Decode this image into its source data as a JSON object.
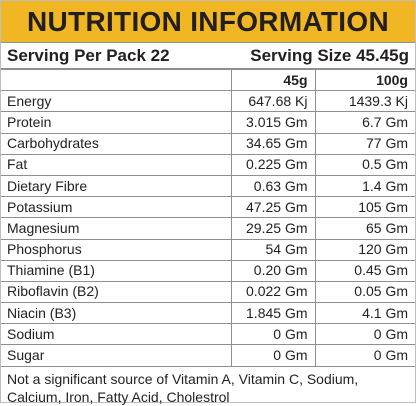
{
  "label": {
    "title": "NUTRITION INFORMATION",
    "header_band_color": "#f0b624",
    "serving_per_pack": "Serving Per Pack 22",
    "serving_size": "Serving Size 45.45g",
    "columns": {
      "col_45g": "45g",
      "col_100g": "100g"
    },
    "rows": [
      {
        "name": "Energy",
        "per_45g": "647.68 Kj",
        "per_100g": "1439.3 Kj"
      },
      {
        "name": "Protein",
        "per_45g": "3.015 Gm",
        "per_100g": "6.7 Gm"
      },
      {
        "name": "Carbohydrates",
        "per_45g": "34.65 Gm",
        "per_100g": "77 Gm"
      },
      {
        "name": "Fat",
        "per_45g": "0.225 Gm",
        "per_100g": "0.5 Gm"
      },
      {
        "name": "Dietary Fibre",
        "per_45g": "0.63 Gm",
        "per_100g": "1.4 Gm"
      },
      {
        "name": "Potassium",
        "per_45g": "47.25 Gm",
        "per_100g": "105 Gm"
      },
      {
        "name": "Magnesium",
        "per_45g": "29.25 Gm",
        "per_100g": "65 Gm"
      },
      {
        "name": "Phosphorus",
        "per_45g": "54 Gm",
        "per_100g": "120 Gm"
      },
      {
        "name": "Thiamine (B1)",
        "per_45g": "0.20 Gm",
        "per_100g": "0.45 Gm"
      },
      {
        "name": "Riboflavin (B2)",
        "per_45g": "0.022 Gm",
        "per_100g": "0.05 Gm"
      },
      {
        "name": "Niacin (B3)",
        "per_45g": "1.845 Gm",
        "per_100g": "4.1 Gm"
      },
      {
        "name": "Sodium",
        "per_45g": "0 Gm",
        "per_100g": "0 Gm"
      },
      {
        "name": "Sugar",
        "per_45g": "0 Gm",
        "per_100g": "0 Gm"
      }
    ],
    "footnote": "Not a significant source of Vitamin A, Vitamin C, Sodium, Calcium, Iron, Fatty Acid, Cholestrol"
  }
}
